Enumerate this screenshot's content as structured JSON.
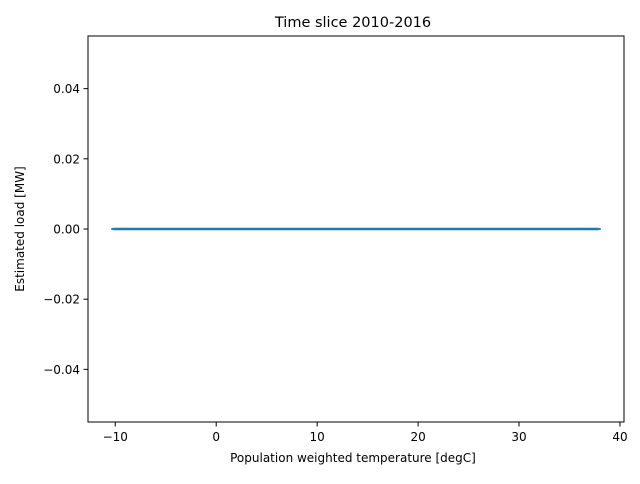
{
  "chart_data": {
    "type": "scatter",
    "title": "Time slice 2010-2016",
    "xlabel": "Population weighted temperature [degC]",
    "ylabel": "Estimated load [MW]",
    "xlim": [
      -12.7,
      40.4
    ],
    "ylim": [
      -0.055,
      0.055
    ],
    "xticks": [
      -10,
      0,
      10,
      20,
      30,
      40
    ],
    "xtick_labels": [
      "−10",
      "0",
      "10",
      "20",
      "30",
      "40"
    ],
    "yticks": [
      -0.04,
      -0.02,
      0.0,
      0.02,
      0.04
    ],
    "ytick_labels": [
      "−0.04",
      "−0.02",
      "0.00",
      "0.02",
      "0.04"
    ],
    "grid": false,
    "legend": "none",
    "series": [
      {
        "color": "#1f77b4",
        "x_range": [
          -10.3,
          38.0
        ],
        "y": 0.0,
        "outlier_x": [
          -10.3,
          -9.4,
          -9.0,
          36.4,
          36.9,
          37.3,
          37.6,
          38.0
        ]
      }
    ]
  }
}
